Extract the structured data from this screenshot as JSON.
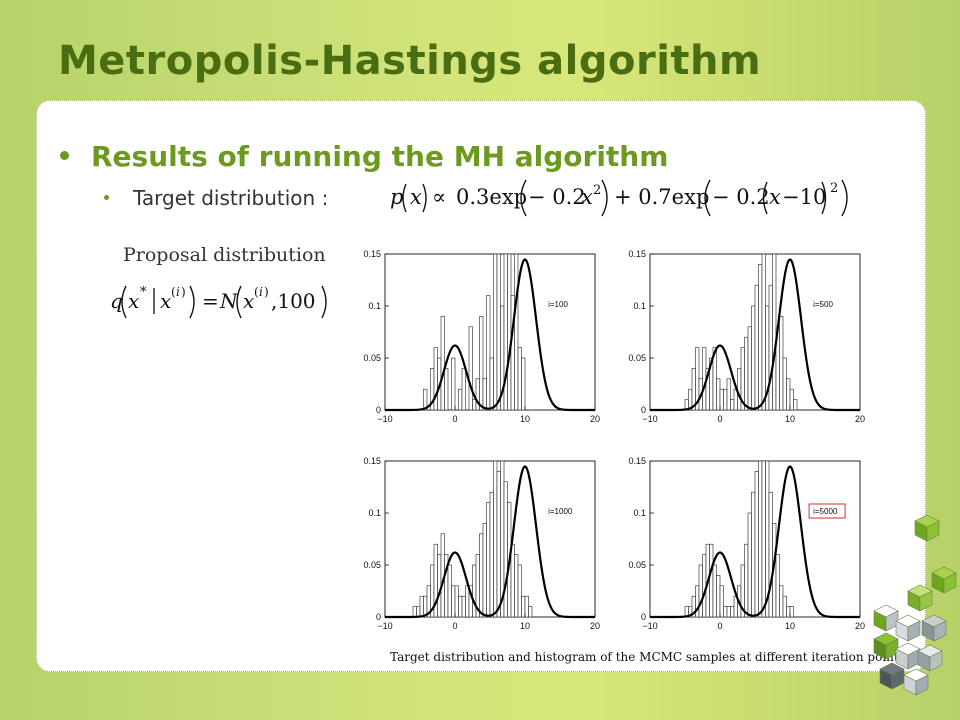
{
  "slide": {
    "title": "Metropolis-Hastings algorithm",
    "bullet1": "Results of running the MH algorithm",
    "bullet2": "Target distribution :",
    "proposal_label": "Proposal distribution",
    "caption": "Target distribution and histogram of the MCMC samples at different iteration points.",
    "accent": "#6c9a1e",
    "title_color": "#4b6d12"
  },
  "chart_data": [
    {
      "type": "bar",
      "annotation": "i=100",
      "xlim": [
        -10,
        20
      ],
      "ylim": [
        0,
        0.15
      ],
      "xticks": [
        "−10",
        "0",
        "10",
        "20"
      ],
      "yticks": [
        "0",
        "0.05",
        "0.1",
        "0.15"
      ],
      "histogram_edges": [
        -10,
        20
      ],
      "curve": "0.3*exp(-0.2x^2)+0.7*exp(-0.2(x-10)^2), scaled",
      "histogram_values": [
        0,
        0,
        0,
        0,
        0,
        0,
        0,
        0,
        0,
        0,
        0,
        0.02,
        0,
        0.04,
        0.06,
        0.05,
        0.09,
        0.04,
        0,
        0.05,
        0,
        0.02,
        0.04,
        0,
        0.08,
        0.01,
        0.03,
        0.09,
        0.03,
        0.11,
        0.05,
        0.15,
        0.16,
        0.1,
        0.15,
        0.16,
        0.11,
        0.16,
        0.06,
        0.05,
        0,
        0,
        0,
        0,
        0,
        0,
        0,
        0,
        0,
        0,
        0,
        0,
        0,
        0,
        0,
        0,
        0,
        0,
        0,
        0
      ]
    },
    {
      "type": "bar",
      "annotation": "i=500",
      "xlim": [
        -10,
        20
      ],
      "ylim": [
        0,
        0.15
      ],
      "xticks": [
        "−10",
        "0",
        "10",
        "20"
      ],
      "yticks": [
        "0",
        "0.05",
        "0.1",
        "0.15"
      ],
      "histogram_values": [
        0,
        0,
        0,
        0,
        0,
        0,
        0,
        0,
        0,
        0,
        0.01,
        0.02,
        0.04,
        0.06,
        0.03,
        0.06,
        0.04,
        0.05,
        0.06,
        0.03,
        0.02,
        0.02,
        0.03,
        0.01,
        0.02,
        0.04,
        0.06,
        0.07,
        0.08,
        0.1,
        0.12,
        0.14,
        0.16,
        0.1,
        0.12,
        0.16,
        0.08,
        0.09,
        0.05,
        0.03,
        0.02,
        0.01,
        0,
        0,
        0,
        0,
        0,
        0,
        0,
        0,
        0,
        0,
        0,
        0,
        0,
        0,
        0,
        0,
        0,
        0
      ]
    },
    {
      "type": "bar",
      "annotation": "i=1000",
      "xlim": [
        -10,
        20
      ],
      "ylim": [
        0,
        0.15
      ],
      "xticks": [
        "−10",
        "0",
        "10",
        "20"
      ],
      "yticks": [
        "0",
        "0.05",
        "0.1",
        "0.15"
      ],
      "histogram_values": [
        0,
        0,
        0,
        0,
        0,
        0,
        0,
        0,
        0.01,
        0.01,
        0.02,
        0.02,
        0.03,
        0.05,
        0.07,
        0.06,
        0.08,
        0.06,
        0.05,
        0.03,
        0.03,
        0.02,
        0.02,
        0.03,
        0.03,
        0.05,
        0.06,
        0.08,
        0.09,
        0.11,
        0.12,
        0.15,
        0.14,
        0.16,
        0.13,
        0.11,
        0.07,
        0.06,
        0.05,
        0.02,
        0.02,
        0.01,
        0,
        0,
        0,
        0,
        0,
        0,
        0,
        0,
        0,
        0,
        0,
        0,
        0,
        0,
        0,
        0,
        0,
        0
      ]
    },
    {
      "type": "bar",
      "annotation": "i=5000",
      "annotation_highlight": "#d12b2b",
      "xlim": [
        -10,
        20
      ],
      "ylim": [
        0,
        0.15
      ],
      "xticks": [
        "−10",
        "0",
        "10",
        "20"
      ],
      "yticks": [
        "0",
        "0.05",
        "0.1",
        "0.15"
      ],
      "histogram_values": [
        0,
        0,
        0,
        0,
        0,
        0,
        0,
        0,
        0,
        0,
        0.01,
        0.01,
        0.02,
        0.03,
        0.05,
        0.06,
        0.07,
        0.07,
        0.05,
        0.04,
        0.03,
        0.01,
        0.01,
        0.01,
        0.02,
        0.03,
        0.05,
        0.07,
        0.1,
        0.12,
        0.14,
        0.16,
        0.15,
        0.16,
        0.12,
        0.09,
        0.06,
        0.03,
        0.02,
        0.01,
        0.01,
        0,
        0,
        0,
        0,
        0,
        0,
        0,
        0,
        0,
        0,
        0,
        0,
        0,
        0,
        0,
        0,
        0,
        0,
        0
      ]
    }
  ]
}
